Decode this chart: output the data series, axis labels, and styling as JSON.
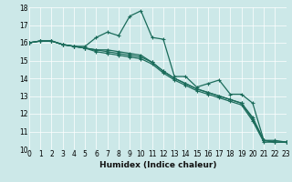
{
  "xlabel": "Humidex (Indice chaleur)",
  "xlim": [
    0,
    23
  ],
  "ylim": [
    10,
    18
  ],
  "xticks": [
    0,
    1,
    2,
    3,
    4,
    5,
    6,
    7,
    8,
    9,
    10,
    11,
    12,
    13,
    14,
    15,
    16,
    17,
    18,
    19,
    20,
    21,
    22,
    23
  ],
  "yticks": [
    10,
    11,
    12,
    13,
    14,
    15,
    16,
    17,
    18
  ],
  "bg_color": "#cce8e8",
  "line_color": "#1a6b5a",
  "grid_color": "#ffffff",
  "series": [
    [
      16.0,
      16.1,
      16.1,
      15.9,
      15.8,
      15.8,
      16.3,
      16.6,
      16.4,
      17.5,
      17.8,
      16.3,
      16.2,
      14.1,
      14.1,
      13.5,
      13.7,
      13.9,
      13.1,
      13.1,
      12.6,
      10.5,
      10.5,
      10.4
    ],
    [
      16.0,
      16.1,
      16.1,
      15.9,
      15.8,
      15.7,
      15.6,
      15.6,
      15.5,
      15.4,
      15.3,
      14.9,
      14.4,
      14.0,
      13.7,
      13.4,
      13.2,
      13.0,
      12.8,
      12.6,
      11.7,
      10.5,
      10.4,
      10.4
    ],
    [
      16.0,
      16.1,
      16.1,
      15.9,
      15.8,
      15.7,
      15.6,
      15.5,
      15.4,
      15.3,
      15.2,
      14.9,
      14.4,
      14.0,
      13.7,
      13.4,
      13.2,
      13.0,
      12.8,
      12.6,
      11.8,
      10.5,
      10.4,
      10.4
    ],
    [
      16.0,
      16.1,
      16.1,
      15.9,
      15.8,
      15.7,
      15.5,
      15.4,
      15.3,
      15.2,
      15.1,
      14.8,
      14.3,
      13.9,
      13.6,
      13.3,
      13.1,
      12.9,
      12.7,
      12.5,
      11.6,
      10.4,
      10.4,
      10.4
    ]
  ],
  "xlabel_fontsize": 6.5,
  "tick_fontsize": 5.5
}
